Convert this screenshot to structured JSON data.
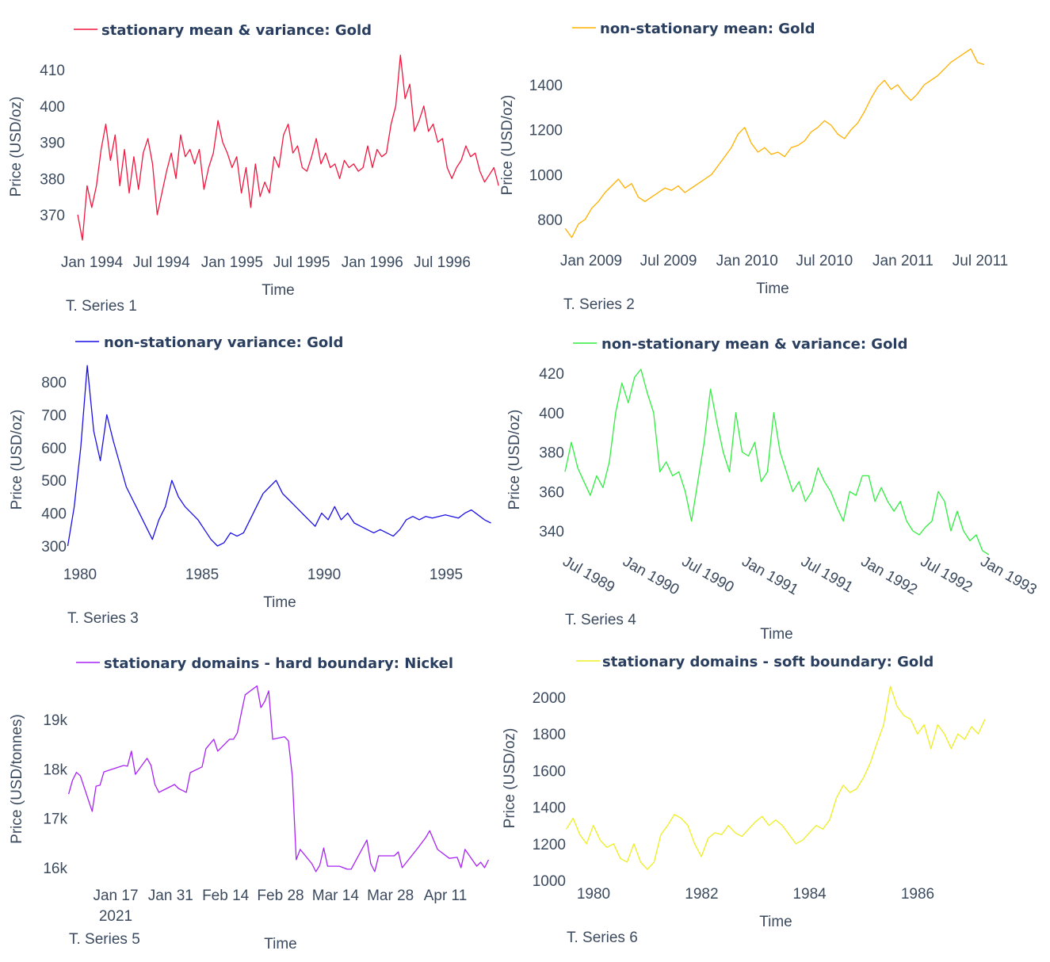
{
  "chart_data": [
    {
      "type": "line",
      "title": "stationary mean & variance: Gold",
      "series_label": "T. Series 1",
      "xlabel": "Time",
      "ylabel": "Price (USD/oz)",
      "color": "#f2163f",
      "x_range": [
        "1993-11-25",
        "1996-11-25"
      ],
      "x_ticks": [
        [
          "1994-01-01",
          "Jan 1994"
        ],
        [
          "1994-07-01",
          "Jul 1994"
        ],
        [
          "1995-01-01",
          "Jan 1995"
        ],
        [
          "1995-07-01",
          "Jul 1995"
        ],
        [
          "1996-01-01",
          "Jan 1996"
        ],
        [
          "1996-07-01",
          "Jul 1996"
        ]
      ],
      "y_ticks": [
        370,
        380,
        390,
        400,
        410
      ],
      "values": [
        370,
        363,
        378,
        372,
        378,
        388,
        395,
        385,
        392,
        378,
        388,
        376,
        386,
        377,
        387,
        391,
        384,
        370,
        376,
        382,
        387,
        380,
        392,
        386,
        388,
        384,
        388,
        377,
        383,
        387,
        396,
        390,
        387,
        383,
        386,
        376,
        383,
        372,
        384,
        375,
        379,
        376,
        386,
        383,
        392,
        395,
        387,
        389,
        383,
        382,
        386,
        391,
        384,
        387,
        383,
        384,
        380,
        385,
        383,
        384,
        382,
        383,
        389,
        383,
        388,
        386,
        387,
        395,
        400,
        414,
        402,
        406,
        393,
        396,
        400,
        393,
        395,
        390,
        391,
        383,
        380,
        383,
        385,
        389,
        386,
        387,
        382,
        379,
        381,
        383,
        378
      ]
    },
    {
      "type": "line",
      "title": "non-stationary mean: Gold",
      "series_label": "T. Series 2",
      "xlabel": "Time",
      "ylabel": "Price (USD/oz)",
      "color": "#ffb000",
      "x_range": [
        "2008-11-01",
        "2011-07-10"
      ],
      "x_ticks": [
        [
          "2009-01-01",
          "Jan 2009"
        ],
        [
          "2009-07-01",
          "Jul 2009"
        ],
        [
          "2010-01-01",
          "Jan 2010"
        ],
        [
          "2010-07-01",
          "Jul 2010"
        ],
        [
          "2011-01-01",
          "Jan 2011"
        ],
        [
          "2011-07-01",
          "Jul 2011"
        ]
      ],
      "y_ticks": [
        800,
        1000,
        1200,
        1400
      ],
      "values": [
        760,
        720,
        780,
        800,
        850,
        880,
        920,
        950,
        980,
        940,
        960,
        900,
        880,
        900,
        920,
        940,
        930,
        950,
        920,
        940,
        960,
        980,
        1000,
        1040,
        1080,
        1120,
        1180,
        1210,
        1140,
        1100,
        1120,
        1090,
        1100,
        1080,
        1120,
        1130,
        1150,
        1190,
        1210,
        1240,
        1220,
        1180,
        1160,
        1200,
        1230,
        1280,
        1340,
        1390,
        1420,
        1380,
        1400,
        1360,
        1330,
        1360,
        1400,
        1420,
        1440,
        1470,
        1500,
        1520,
        1540,
        1560,
        1500,
        1490
      ]
    },
    {
      "type": "line",
      "title": "non-stationary variance: Gold",
      "series_label": "T. Series 3",
      "xlabel": "Time",
      "ylabel": "Price (USD/oz)",
      "color": "#1a0fe6",
      "x_range": [
        "1979-07-01",
        "1996-11-01"
      ],
      "x_ticks": [
        [
          "1980-01-01",
          "1980"
        ],
        [
          "1985-01-01",
          "1985"
        ],
        [
          "1990-01-01",
          "1990"
        ],
        [
          "1995-01-01",
          "1995"
        ]
      ],
      "y_ticks": [
        300,
        400,
        500,
        600,
        700,
        800
      ],
      "values": [
        300,
        420,
        600,
        850,
        650,
        560,
        700,
        620,
        550,
        480,
        440,
        400,
        360,
        320,
        380,
        420,
        500,
        450,
        420,
        400,
        380,
        350,
        320,
        300,
        310,
        340,
        330,
        340,
        380,
        420,
        460,
        480,
        500,
        460,
        440,
        420,
        400,
        380,
        360,
        400,
        380,
        420,
        380,
        400,
        370,
        360,
        350,
        340,
        350,
        340,
        330,
        350,
        380,
        390,
        380,
        390,
        385,
        390,
        395,
        390,
        385,
        400,
        410,
        395,
        380,
        370
      ]
    },
    {
      "type": "line",
      "title": "non-stationary mean & variance: Gold",
      "series_label": "T. Series 4",
      "xlabel": "Time",
      "ylabel": "Price (USD/oz)",
      "color": "#2fee3f",
      "x_range": [
        "1989-07-01",
        "1993-01-20"
      ],
      "x_ticks": [
        [
          "1989-07-01",
          "Jul 1989"
        ],
        [
          "1990-01-01",
          "Jan 1990"
        ],
        [
          "1990-07-01",
          "Jul 1990"
        ],
        [
          "1991-01-01",
          "Jan 1991"
        ],
        [
          "1991-07-01",
          "Jul 1991"
        ],
        [
          "1992-01-01",
          "Jan 1992"
        ],
        [
          "1992-07-01",
          "Jul 1992"
        ],
        [
          "1993-01-01",
          "Jan 1993"
        ]
      ],
      "y_ticks": [
        340,
        360,
        380,
        400,
        420
      ],
      "values": [
        370,
        385,
        372,
        365,
        358,
        368,
        362,
        375,
        400,
        415,
        405,
        418,
        422,
        410,
        400,
        370,
        375,
        368,
        370,
        360,
        345,
        365,
        385,
        412,
        395,
        380,
        370,
        400,
        380,
        378,
        385,
        365,
        370,
        400,
        380,
        370,
        360,
        365,
        355,
        360,
        372,
        365,
        360,
        352,
        345,
        360,
        358,
        368,
        368,
        355,
        362,
        355,
        350,
        355,
        345,
        340,
        338,
        342,
        345,
        360,
        355,
        340,
        350,
        340,
        335,
        338,
        330,
        328
      ]
    },
    {
      "type": "line",
      "title": "stationary domains - hard boundary: Nickel",
      "series_label": "T. Series 5",
      "xlabel": "Time",
      "ylabel": "Price (USD/tonnes)",
      "color": "#a822f5",
      "x_ticks": [
        [
          "2021-01-17",
          "Jan 17"
        ],
        [
          "2021-01-31",
          "Jan 31"
        ],
        [
          "2021-02-14",
          "Feb 14"
        ],
        [
          "2021-02-28",
          "Feb 28"
        ],
        [
          "2021-03-14",
          "Mar 14"
        ],
        [
          "2021-03-28",
          "Mar 28"
        ],
        [
          "2021-04-11",
          "Apr 11"
        ]
      ],
      "x_year_label": "2021",
      "y_ticks": [
        [
          16000,
          "16k"
        ],
        [
          17000,
          "17k"
        ],
        [
          18000,
          "18k"
        ],
        [
          19000,
          "19k"
        ]
      ],
      "points": [
        [
          "2021-01-05",
          17490
        ],
        [
          "2021-01-06",
          17770
        ],
        [
          "2021-01-07",
          17930
        ],
        [
          "2021-01-08",
          17860
        ],
        [
          "2021-01-11",
          17140
        ],
        [
          "2021-01-12",
          17650
        ],
        [
          "2021-01-13",
          17670
        ],
        [
          "2021-01-14",
          17940
        ],
        [
          "2021-01-19",
          18070
        ],
        [
          "2021-01-20",
          18055
        ],
        [
          "2021-01-21",
          18360
        ],
        [
          "2021-01-22",
          17890
        ],
        [
          "2021-01-25",
          18215
        ],
        [
          "2021-01-26",
          18070
        ],
        [
          "2021-01-27",
          17685
        ],
        [
          "2021-01-28",
          17525
        ],
        [
          "2021-01-30",
          17605
        ],
        [
          "2021-02-01",
          17685
        ],
        [
          "2021-02-02",
          17605
        ],
        [
          "2021-02-04",
          17525
        ],
        [
          "2021-02-05",
          17925
        ],
        [
          "2021-02-08",
          18040
        ],
        [
          "2021-02-09",
          18410
        ],
        [
          "2021-02-11",
          18600
        ],
        [
          "2021-02-12",
          18360
        ],
        [
          "2021-02-15",
          18600
        ],
        [
          "2021-02-16",
          18600
        ],
        [
          "2021-02-17",
          18730
        ],
        [
          "2021-02-18",
          19130
        ],
        [
          "2021-02-19",
          19500
        ],
        [
          "2021-02-22",
          19680
        ],
        [
          "2021-02-23",
          19240
        ],
        [
          "2021-02-24",
          19370
        ],
        [
          "2021-02-25",
          19580
        ],
        [
          "2021-02-26",
          18600
        ],
        [
          "2021-03-01",
          18650
        ],
        [
          "2021-03-02",
          18570
        ],
        [
          "2021-03-03",
          17850
        ],
        [
          "2021-03-04",
          16160
        ],
        [
          "2021-03-05",
          16370
        ],
        [
          "2021-03-08",
          16080
        ],
        [
          "2021-03-09",
          15920
        ],
        [
          "2021-03-10",
          16050
        ],
        [
          "2021-03-11",
          16400
        ],
        [
          "2021-03-12",
          16030
        ],
        [
          "2021-03-15",
          16030
        ],
        [
          "2021-03-17",
          15970
        ],
        [
          "2021-03-18",
          15970
        ],
        [
          "2021-03-22",
          16560
        ],
        [
          "2021-03-23",
          16080
        ],
        [
          "2021-03-24",
          15920
        ],
        [
          "2021-03-25",
          16240
        ],
        [
          "2021-03-29",
          16240
        ],
        [
          "2021-03-30",
          16320
        ],
        [
          "2021-03-31",
          16000
        ],
        [
          "2021-04-04",
          16400
        ],
        [
          "2021-04-06",
          16610
        ],
        [
          "2021-04-07",
          16750
        ],
        [
          "2021-04-09",
          16370
        ],
        [
          "2021-04-12",
          16190
        ],
        [
          "2021-04-14",
          16210
        ],
        [
          "2021-04-15",
          16000
        ],
        [
          "2021-04-16",
          16370
        ],
        [
          "2021-04-19",
          16030
        ],
        [
          "2021-04-20",
          16110
        ],
        [
          "2021-04-21",
          16000
        ],
        [
          "2021-04-22",
          16160
        ]
      ]
    },
    {
      "type": "line",
      "title": "stationary domains - soft boundary: Gold",
      "series_label": "T. Series 6",
      "xlabel": "Time",
      "ylabel": "Price (USD/oz)",
      "color": "#eeee22",
      "x_range": [
        "1979-07-01",
        "1987-04-01"
      ],
      "x_ticks": [
        [
          "1980-01-01",
          "1980"
        ],
        [
          "1982-01-01",
          "1982"
        ],
        [
          "1984-01-01",
          "1984"
        ],
        [
          "1986-01-01",
          "1986"
        ]
      ],
      "y_ticks": [
        1000,
        1200,
        1400,
        1600,
        1800,
        2000
      ],
      "values": [
        1280,
        1340,
        1250,
        1200,
        1300,
        1220,
        1180,
        1200,
        1120,
        1100,
        1200,
        1100,
        1060,
        1100,
        1250,
        1300,
        1360,
        1340,
        1300,
        1200,
        1130,
        1230,
        1260,
        1250,
        1300,
        1260,
        1240,
        1280,
        1320,
        1350,
        1300,
        1330,
        1300,
        1250,
        1200,
        1220,
        1260,
        1300,
        1280,
        1330,
        1450,
        1520,
        1480,
        1500,
        1560,
        1640,
        1750,
        1850,
        2060,
        1950,
        1900,
        1880,
        1800,
        1850,
        1720,
        1850,
        1800,
        1720,
        1800,
        1770,
        1840,
        1800,
        1880
      ]
    }
  ]
}
